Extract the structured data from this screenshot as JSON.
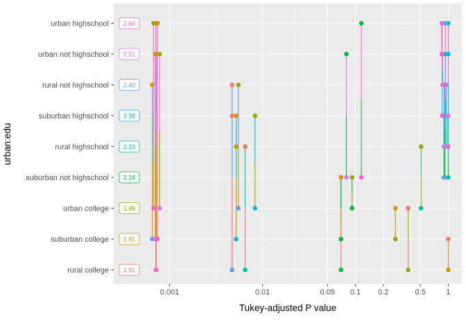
{
  "chart_data": {
    "type": "scatter",
    "subtype": "pwpp",
    "xlabel": "Tukey-adjusted P value",
    "ylabel": "urban:edu",
    "x_scale": "log",
    "xlim": [
      0.00025,
      1.4
    ],
    "x_ticks": [
      {
        "value": 0.001,
        "label": "0.001"
      },
      {
        "value": 0.01,
        "label": "0.01"
      },
      {
        "value": 0.05,
        "label": "0.05"
      },
      {
        "value": 0.1,
        "label": "0.1"
      },
      {
        "value": 0.2,
        "label": "0.2"
      },
      {
        "value": 0.5,
        "label": "0.5"
      },
      {
        "value": 1,
        "label": "1"
      }
    ],
    "grid": true,
    "legend": "none",
    "levels": [
      {
        "name": "rural college",
        "estimate": "1.91",
        "color": "#F8766D"
      },
      {
        "name": "suburban college",
        "estimate": "1.91",
        "color": "#D39200"
      },
      {
        "name": "urban college",
        "estimate": "1.98",
        "color": "#93AA00"
      },
      {
        "name": "suburban not highschool",
        "estimate": "2.24",
        "color": "#00BA38"
      },
      {
        "name": "rural highschool",
        "estimate": "2.33",
        "color": "#00C19F"
      },
      {
        "name": "suburban highschool",
        "estimate": "2.38",
        "color": "#00B9E3"
      },
      {
        "name": "rural not highschool",
        "estimate": "2.40",
        "color": "#619CFF"
      },
      {
        "name": "urban not highschool",
        "estimate": "2.51",
        "color": "#DB72FB"
      },
      {
        "name": "urban highschool",
        "estimate": "2.60",
        "color": "#FF61C3"
      }
    ],
    "comparisons": [
      {
        "a": 0,
        "b": 1,
        "p": 1.0
      },
      {
        "a": 0,
        "b": 2,
        "p": 0.37
      },
      {
        "a": 0,
        "b": 3,
        "p": 0.07
      },
      {
        "a": 0,
        "b": 4,
        "p": 0.0065
      },
      {
        "a": 0,
        "b": 5,
        "p": 0.0047
      },
      {
        "a": 0,
        "b": 6,
        "p": 0.0047
      },
      {
        "a": 0,
        "b": 7,
        "p": 0.00072
      },
      {
        "a": 0,
        "b": 8,
        "p": 0.00071
      },
      {
        "a": 1,
        "b": 2,
        "p": 0.27
      },
      {
        "a": 1,
        "b": 3,
        "p": 0.07
      },
      {
        "a": 1,
        "b": 4,
        "p": 0.0052
      },
      {
        "a": 1,
        "b": 5,
        "p": 0.0052
      },
      {
        "a": 1,
        "b": 6,
        "p": 0.00065
      },
      {
        "a": 1,
        "b": 7,
        "p": 0.0007
      },
      {
        "a": 1,
        "b": 8,
        "p": 0.00074
      },
      {
        "a": 2,
        "b": 3,
        "p": 0.092
      },
      {
        "a": 2,
        "b": 4,
        "p": 0.51
      },
      {
        "a": 2,
        "b": 5,
        "p": 0.0083
      },
      {
        "a": 2,
        "b": 6,
        "p": 0.0055
      },
      {
        "a": 2,
        "b": 7,
        "p": 0.00078
      },
      {
        "a": 2,
        "b": 8,
        "p": 0.00067
      },
      {
        "a": 3,
        "b": 4,
        "p": 1.0
      },
      {
        "a": 3,
        "b": 5,
        "p": 0.9
      },
      {
        "a": 3,
        "b": 6,
        "p": 0.92
      },
      {
        "a": 3,
        "b": 7,
        "p": 0.08
      },
      {
        "a": 3,
        "b": 8,
        "p": 0.116
      },
      {
        "a": 4,
        "b": 5,
        "p": 0.97
      },
      {
        "a": 4,
        "b": 6,
        "p": 0.9
      },
      {
        "a": 4,
        "b": 7,
        "p": 0.93
      },
      {
        "a": 4,
        "b": 8,
        "p": 1.0
      },
      {
        "a": 5,
        "b": 6,
        "p": 0.95
      },
      {
        "a": 5,
        "b": 7,
        "p": 1.0
      },
      {
        "a": 5,
        "b": 8,
        "p": 0.86
      },
      {
        "a": 6,
        "b": 7,
        "p": 0.87
      },
      {
        "a": 6,
        "b": 8,
        "p": 0.93
      },
      {
        "a": 7,
        "b": 8,
        "p": 0.85
      }
    ]
  }
}
